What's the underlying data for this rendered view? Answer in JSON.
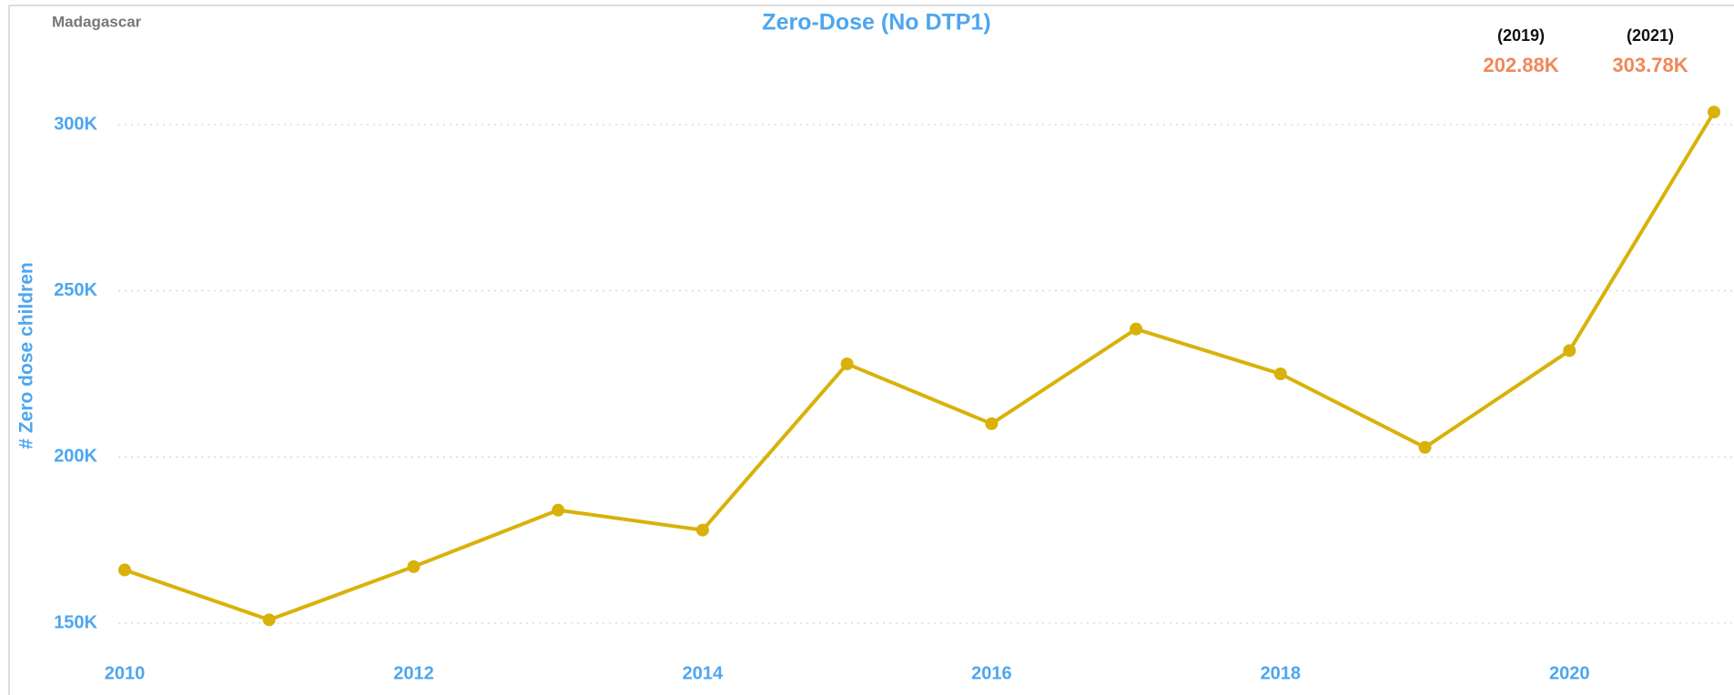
{
  "chart_data": {
    "type": "line",
    "title": "Zero-Dose (No DTP1)",
    "subtitle": "Madagascar",
    "y_label": "# Zero dose children",
    "x": [
      2010,
      2011,
      2012,
      2013,
      2014,
      2015,
      2016,
      2017,
      2018,
      2019,
      2020,
      2021
    ],
    "series": [
      {
        "name": "Zero dose children",
        "color": "#d8b20a",
        "values": [
          166000,
          151000,
          167000,
          184000,
          178000,
          228000,
          210000,
          238500,
          225000,
          202880,
          232000,
          303780
        ]
      }
    ],
    "xlim": [
      2010,
      2021
    ],
    "xticks": [
      2010,
      2012,
      2014,
      2016,
      2018,
      2020
    ],
    "ylim": [
      141400,
      321000
    ],
    "yticks": [
      {
        "value": 150000,
        "label": "150K"
      },
      {
        "value": 200000,
        "label": "200K"
      },
      {
        "value": 250000,
        "label": "250K"
      },
      {
        "value": 300000,
        "label": "300K"
      }
    ],
    "grid": true,
    "annotations": [
      {
        "label": "(2019)",
        "value": "202.88K"
      },
      {
        "label": "(2021)",
        "value": "303.78K"
      }
    ]
  }
}
